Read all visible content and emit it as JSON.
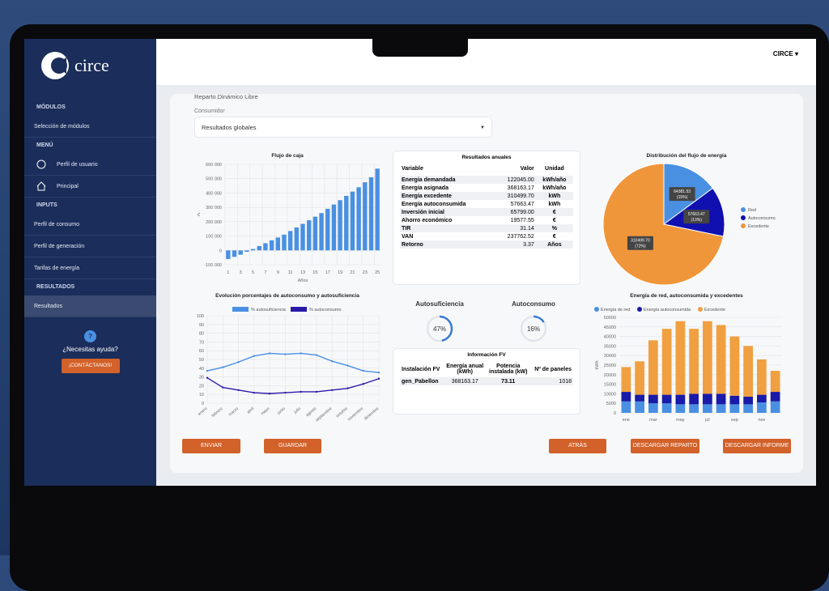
{
  "sidebar": {
    "logo": "circe",
    "sections": [
      {
        "title": "MÓDULOS",
        "items": [
          "Selección de módulos"
        ]
      },
      {
        "title": "MENÚ",
        "items": [
          "Perfil de usuario",
          "Principal"
        ]
      },
      {
        "title": "INPUTS",
        "items": [
          "Perfil de consumo",
          "Perfil de generación",
          "Tarifas de energía"
        ]
      },
      {
        "title": "RESULTADOS",
        "items": [
          "Resultados"
        ]
      }
    ],
    "help": {
      "icon": "?",
      "text": "¿Necesitas ayuda?",
      "button": "¡CONTÁCTANOS!"
    }
  },
  "header": {
    "user": "CIRCE"
  },
  "page": {
    "title": "Reparto Dinámico Libre",
    "select_label": "Consumidor",
    "select_value": "Resultados globales"
  },
  "annual_results": {
    "title": "Resultados anuales",
    "columns": [
      "Variable",
      "Valor",
      "Unidad"
    ],
    "rows": [
      [
        "Energía demandada",
        "122045.00",
        "kWh/año"
      ],
      [
        "Energía asignada",
        "368163.17",
        "kWh/año"
      ],
      [
        "Energía excedente",
        "310499.70",
        "kWh"
      ],
      [
        "Energía autoconsumida",
        "57663.47",
        "kWh"
      ],
      [
        "Inversión inicial",
        "65799.00",
        "€"
      ],
      [
        "Ahorro económico",
        "19577.55",
        "€"
      ],
      [
        "TIR",
        "31.14",
        "%"
      ],
      [
        "VAN",
        "237762.52",
        "€"
      ],
      [
        "Retorno",
        "3.37",
        "Años"
      ]
    ]
  },
  "kpis": [
    {
      "name": "Autosuficiencia",
      "value": 47,
      "value_label": "47%"
    },
    {
      "name": "Autoconsumo",
      "value": 16,
      "value_label": "16%"
    }
  ],
  "fv_info": {
    "title": "Información FV",
    "columns": [
      "Instalación FV",
      "Energía anual (kWh)",
      "Potencia instalada (kW)",
      "Nº de paneles"
    ],
    "rows": [
      [
        "gen_Pabellon",
        "368163.17",
        "73.11",
        "1018"
      ]
    ]
  },
  "buttons": [
    "ENVIAR",
    "GUARDAR",
    "ATRÁS",
    "DESCARGAR REPARTO",
    "DESCARGAR INFORME"
  ],
  "chart_data": [
    {
      "type": "bar",
      "title": "Flujo de caja",
      "x_label": "Años",
      "y_label": "€",
      "color": "#4a90e2",
      "grid": true,
      "categories": [
        1,
        null,
        3,
        null,
        5,
        null,
        7,
        null,
        9,
        null,
        11,
        null,
        13,
        null,
        15,
        null,
        17,
        null,
        19,
        null,
        21,
        null,
        23,
        null,
        25
      ],
      "values": [
        -60000,
        -45000,
        -30000,
        -10000,
        10000,
        30000,
        50000,
        70000,
        90000,
        110000,
        135000,
        160000,
        185000,
        210000,
        235000,
        260000,
        290000,
        320000,
        350000,
        380000,
        410000,
        440000,
        475000,
        510000,
        570000
      ],
      "ylim": [
        -100000,
        600000
      ],
      "yticks": [
        {
          "value": -100000,
          "label": "-100 000"
        },
        0,
        {
          "value": 100000,
          "label": "100 000"
        },
        {
          "value": 200000,
          "label": "200 000"
        },
        {
          "value": 300000,
          "label": "300 000"
        },
        {
          "value": 400000,
          "label": "400 000"
        },
        {
          "value": 500000,
          "label": "500 000"
        },
        {
          "value": 600000,
          "label": "600 000"
        }
      ]
    },
    {
      "type": "line",
      "title": "Evolución porcentajes de autoconsumo y autosuficiencia",
      "grid": true,
      "categories": [
        "enero",
        "febrero",
        "marzo",
        "abril",
        "mayo",
        "junio",
        "julio",
        "agosto",
        "septiembre",
        "octubre",
        "noviembre",
        "diciembre"
      ],
      "series": [
        {
          "name": "% autosuficiencia",
          "color": "#4a90e2",
          "values": [
            37,
            41,
            47,
            54,
            57,
            56,
            57,
            55,
            48,
            43,
            37,
            35
          ]
        },
        {
          "name": "% autoconsumo",
          "color": "#2a1aa8",
          "values": [
            29,
            18,
            15,
            12,
            11,
            12,
            13,
            13,
            15,
            17,
            22,
            28
          ]
        }
      ],
      "ylim": [
        0,
        100
      ],
      "yticks": [
        0,
        10,
        20,
        30,
        40,
        50,
        60,
        70,
        80,
        90,
        100
      ]
    },
    {
      "type": "pie",
      "title": "Distribución del flujo de energía",
      "categories": [
        "Red",
        "Autoconsumo",
        "Excedente"
      ],
      "colors": [
        "#4a90e2",
        "#1010b0",
        "#f0963a"
      ],
      "values": [
        64381.53,
        57663.47,
        310499.7
      ],
      "value_labels": [
        "64381.53",
        "57663.47",
        "310499.70"
      ],
      "share_labels": [
        "(15%)",
        "(13%)",
        "(72%)"
      ],
      "legend": "right"
    },
    {
      "type": "stacked_bar",
      "title": "Energía de red, autoconsumida y excedentes",
      "y_label": "kWh",
      "grid": true,
      "categories": [
        "ene",
        null,
        "mar",
        null,
        "may",
        null,
        "jul",
        null,
        "sep",
        null,
        "nov",
        null
      ],
      "series": [
        {
          "name": "Energía de red",
          "color": "#4a90e2",
          "values": [
            6000,
            6000,
            5000,
            5000,
            4500,
            4500,
            4500,
            4500,
            4500,
            4500,
            5500,
            6000
          ]
        },
        {
          "name": "Energía autoconsumida",
          "color": "#1a1aa8",
          "values": [
            5000,
            3500,
            4500,
            4500,
            5000,
            5500,
            5500,
            5500,
            4500,
            4000,
            4000,
            5000
          ]
        },
        {
          "name": "Excedente",
          "color": "#f0a040",
          "values": [
            13000,
            17500,
            28500,
            34500,
            38500,
            34000,
            38000,
            36000,
            31000,
            26500,
            18500,
            11000
          ]
        }
      ],
      "ylim": [
        0,
        50000
      ],
      "yticks": [
        0,
        5000,
        10000,
        15000,
        20000,
        25000,
        30000,
        35000,
        40000,
        45000,
        50000
      ]
    }
  ]
}
